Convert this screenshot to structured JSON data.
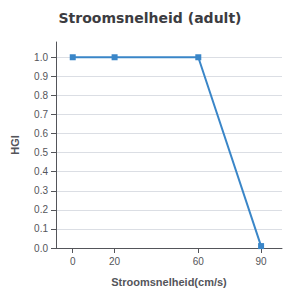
{
  "chart_data": {
    "type": "line",
    "title": "Stroomsnelheid (adult)",
    "xlabel": "Stroomsnelheid(cm/s)",
    "ylabel": "HGI",
    "x": [
      0,
      20,
      60,
      90
    ],
    "values": [
      1.0,
      1.0,
      1.0,
      0.01
    ],
    "color": "#3a86c8",
    "marker": "square",
    "xlim": [
      -8,
      100
    ],
    "ylim": [
      0.0,
      1.08
    ],
    "xticks": [
      0,
      20,
      60,
      90
    ],
    "yticks": [
      {
        "value": 0.0,
        "label": "0.0"
      },
      0.1,
      0.2,
      0.3,
      0.4,
      0.5,
      0.6,
      0.7,
      0.8,
      0.9,
      {
        "value": 1.0,
        "label": "1.0"
      }
    ],
    "grid": true
  }
}
